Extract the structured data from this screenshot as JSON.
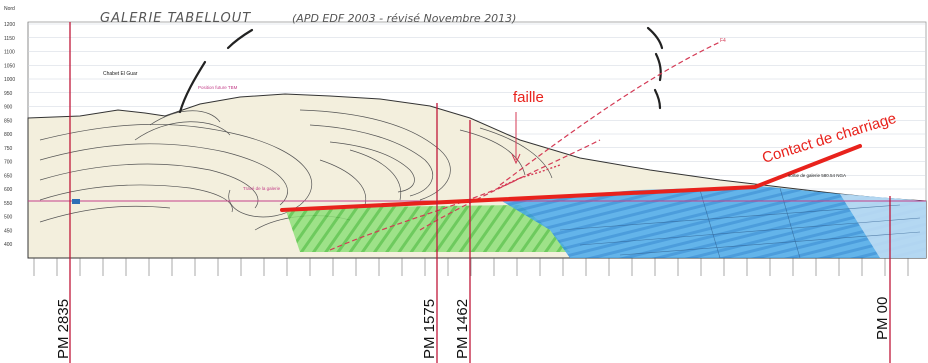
{
  "title_handwritten": "GALERIE TABELLOUT",
  "subtitle_handwritten": "(APD EDF 2003 - révisé Novembre 2013)",
  "y_axis_unit": "Nord",
  "y_axis_ticks": [
    "1200",
    "1150",
    "1100",
    "1050",
    "1000",
    "950",
    "900",
    "850",
    "800",
    "750",
    "700",
    "650",
    "600",
    "550",
    "500",
    "450",
    "400"
  ],
  "labels": {
    "faille": "faille",
    "contact": "Contact de charriage",
    "place_name": "Chabet El Guar",
    "tbm_position": "Position future TBM",
    "gallery_trace": "Tracé de la galerie",
    "gallery_exit": "sortie de galerie 580.54 NGA",
    "fault_code": "F4"
  },
  "pm_markers": [
    {
      "label": "PM 2835"
    },
    {
      "label": "PM 1575"
    },
    {
      "label": "PM 1462"
    },
    {
      "label": "PM 00"
    }
  ],
  "colors": {
    "contact_line": "#e8221c",
    "marker_line": "#c0183a",
    "limestone_fill": "#6fd35a",
    "schist_fill": "#3aa2e8",
    "terrain_fill": "#f3efdd"
  }
}
